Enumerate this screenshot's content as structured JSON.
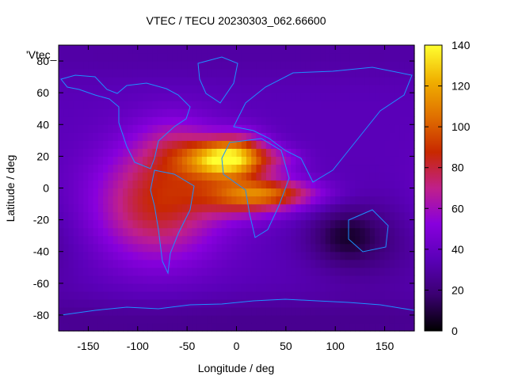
{
  "chart_data": {
    "type": "heatmap",
    "title": "VTEC / TECU 20230303_062.66600",
    "xlabel": "Longitude / deg",
    "ylabel": "Latitude / deg",
    "key_label": "'Vtec_",
    "xlim": [
      -180,
      180
    ],
    "ylim": [
      -90,
      90
    ],
    "x_ticks": [
      -150,
      -100,
      -50,
      0,
      50,
      100,
      150
    ],
    "y_ticks": [
      -80,
      -60,
      -40,
      -20,
      0,
      20,
      40,
      60,
      80
    ],
    "colorbar": {
      "range": [
        0,
        140
      ],
      "ticks": [
        0,
        20,
        40,
        60,
        80,
        100,
        120,
        140
      ],
      "palette": [
        "#000000",
        "#3a0070",
        "#5a00b8",
        "#8800dd",
        "#c0208a",
        "#c82800",
        "#e07000",
        "#f0b000",
        "#ffff30"
      ]
    },
    "coastline_color": "#1e90ff",
    "background_level": 35,
    "features": [
      {
        "lon": -80,
        "lat": -10,
        "slon": 45,
        "slat": 25,
        "amp": 50
      },
      {
        "lon": -60,
        "lat": 25,
        "slon": 30,
        "slat": 15,
        "amp": 25
      },
      {
        "lon": -15,
        "lat": 18,
        "slon": 25,
        "slat": 8,
        "amp": 75
      },
      {
        "lon": 5,
        "lat": 22,
        "slon": 20,
        "slat": 10,
        "amp": 35
      },
      {
        "lon": 10,
        "lat": -5,
        "slon": 35,
        "slat": 9,
        "amp": 45
      },
      {
        "lon": 40,
        "lat": -3,
        "slon": 35,
        "slat": 6,
        "amp": 35
      },
      {
        "lon": 40,
        "lat": 18,
        "slon": 20,
        "slat": 6,
        "amp": 20
      },
      {
        "lon": 110,
        "lat": -30,
        "slon": 25,
        "slat": 12,
        "amp": -20
      },
      {
        "lon": 140,
        "lat": -35,
        "slon": 45,
        "slat": 20,
        "amp": -10
      },
      {
        "lon": 0,
        "lat": 85,
        "slon": 360,
        "slat": 12,
        "amp": -5
      },
      {
        "lon": 0,
        "lat": -85,
        "slon": 360,
        "slat": 12,
        "amp": -10
      }
    ]
  }
}
